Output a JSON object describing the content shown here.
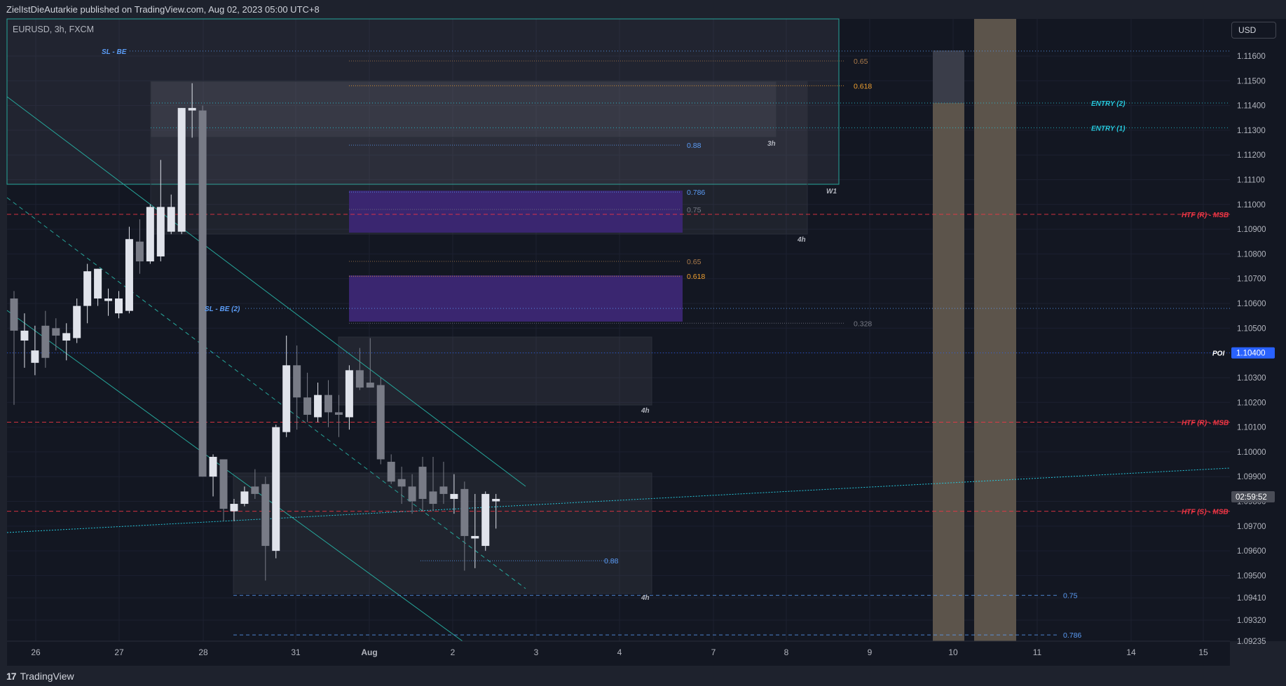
{
  "header": {
    "published_text": "ZielIstDieAutarkie published on TradingView.com, Aug 02, 2023 05:00 UTC+8"
  },
  "legend": {
    "symbol_line": "EURUSD, 3h, FXCM"
  },
  "currency_button": "USD",
  "branding": {
    "logo_text": "TradingView",
    "logo_mark": "17"
  },
  "colors": {
    "background": "#131722",
    "bull_candle": "#e0e3eb",
    "bear_candle": "#787b86",
    "teal": "#26a69a",
    "red": "#f23645",
    "blue": "#2962ff",
    "purple": "#4527a0",
    "tan": "#7d7061"
  },
  "chart_data": {
    "type": "candlestick",
    "symbol": "EURUSD",
    "timeframe": "3h",
    "source": "FXCM",
    "ylim": [
      1.09235,
      1.1175
    ],
    "y_ticks": [
      "1.11600",
      "1.11500",
      "1.11400",
      "1.11300",
      "1.11200",
      "1.11100",
      "1.11000",
      "1.10900",
      "1.10800",
      "1.10700",
      "1.10600",
      "1.10500",
      "1.10400",
      "1.10300",
      "1.10200",
      "1.10100",
      "1.10000",
      "1.09900",
      "1.09800",
      "1.09700",
      "1.09600",
      "1.09500",
      "1.09410",
      "1.09320",
      "1.09235"
    ],
    "x_ticks": [
      "26",
      "27",
      "28",
      "31",
      "Aug",
      "2",
      "3",
      "4",
      "7",
      "8",
      "9",
      "10",
      "11",
      "14",
      "15"
    ],
    "price_labels": {
      "current": "1.10400",
      "countdown": "02:59:52"
    },
    "candles": [
      {
        "o": 1.1062,
        "h": 1.1065,
        "l": 1.1019,
        "c": 1.1049
      },
      {
        "o": 1.1045,
        "h": 1.1056,
        "l": 1.1034,
        "c": 1.1049
      },
      {
        "o": 1.1036,
        "h": 1.1051,
        "l": 1.1031,
        "c": 1.1041
      },
      {
        "o": 1.1051,
        "h": 1.1057,
        "l": 1.1034,
        "c": 1.1038
      },
      {
        "o": 1.105,
        "h": 1.1054,
        "l": 1.1041,
        "c": 1.1047
      },
      {
        "o": 1.1045,
        "h": 1.1052,
        "l": 1.1037,
        "c": 1.1048
      },
      {
        "o": 1.1046,
        "h": 1.1062,
        "l": 1.1044,
        "c": 1.1059
      },
      {
        "o": 1.1059,
        "h": 1.1076,
        "l": 1.1052,
        "c": 1.1073
      },
      {
        "o": 1.1062,
        "h": 1.1074,
        "l": 1.1059,
        "c": 1.1074
      },
      {
        "o": 1.1061,
        "h": 1.1066,
        "l": 1.1055,
        "c": 1.1062
      },
      {
        "o": 1.1056,
        "h": 1.1065,
        "l": 1.1054,
        "c": 1.1062
      },
      {
        "o": 1.1057,
        "h": 1.1091,
        "l": 1.1056,
        "c": 1.1086
      },
      {
        "o": 1.1085,
        "h": 1.1094,
        "l": 1.1072,
        "c": 1.1077
      },
      {
        "o": 1.1077,
        "h": 1.11,
        "l": 1.1076,
        "c": 1.1099
      },
      {
        "o": 1.1079,
        "h": 1.1118,
        "l": 1.1077,
        "c": 1.1099
      },
      {
        "o": 1.1089,
        "h": 1.1104,
        "l": 1.1088,
        "c": 1.1099
      },
      {
        "o": 1.1089,
        "h": 1.1139,
        "l": 1.1088,
        "c": 1.1139
      },
      {
        "o": 1.1138,
        "h": 1.1149,
        "l": 1.1127,
        "c": 1.1139
      },
      {
        "o": 1.1138,
        "h": 1.114,
        "l": 1.099,
        "c": 1.099
      },
      {
        "o": 1.099,
        "h": 1.0999,
        "l": 1.0982,
        "c": 1.0998
      },
      {
        "o": 1.0997,
        "h": 1.0997,
        "l": 1.0972,
        "c": 1.0977
      },
      {
        "o": 1.0976,
        "h": 1.0981,
        "l": 1.0972,
        "c": 1.0979
      },
      {
        "o": 1.0979,
        "h": 1.0986,
        "l": 1.0978,
        "c": 1.0984
      },
      {
        "o": 1.0986,
        "h": 1.0993,
        "l": 1.0981,
        "c": 1.0983
      },
      {
        "o": 1.0987,
        "h": 1.099,
        "l": 1.0948,
        "c": 1.0962
      },
      {
        "o": 1.096,
        "h": 1.1011,
        "l": 1.0957,
        "c": 1.101
      },
      {
        "o": 1.1008,
        "h": 1.1047,
        "l": 1.1006,
        "c": 1.1035
      },
      {
        "o": 1.1035,
        "h": 1.1043,
        "l": 1.1009,
        "c": 1.1022
      },
      {
        "o": 1.1022,
        "h": 1.1032,
        "l": 1.1012,
        "c": 1.1015
      },
      {
        "o": 1.1014,
        "h": 1.1028,
        "l": 1.1012,
        "c": 1.1023
      },
      {
        "o": 1.1023,
        "h": 1.1029,
        "l": 1.101,
        "c": 1.1016
      },
      {
        "o": 1.1016,
        "h": 1.1023,
        "l": 1.1006,
        "c": 1.1015
      },
      {
        "o": 1.1014,
        "h": 1.1035,
        "l": 1.1009,
        "c": 1.1033
      },
      {
        "o": 1.1033,
        "h": 1.1042,
        "l": 1.1025,
        "c": 1.1026
      },
      {
        "o": 1.1028,
        "h": 1.1046,
        "l": 1.1026,
        "c": 1.1026
      },
      {
        "o": 1.1027,
        "h": 1.103,
        "l": 1.0995,
        "c": 1.0997
      },
      {
        "o": 1.0996,
        "h": 1.0999,
        "l": 1.0987,
        "c": 1.0988
      },
      {
        "o": 1.0989,
        "h": 1.0994,
        "l": 1.0979,
        "c": 1.0986
      },
      {
        "o": 1.0986,
        "h": 1.0991,
        "l": 1.0975,
        "c": 1.098
      },
      {
        "o": 1.0994,
        "h": 1.0998,
        "l": 1.0976,
        "c": 1.0981
      },
      {
        "o": 1.0984,
        "h": 1.0998,
        "l": 1.0976,
        "c": 1.0979
      },
      {
        "o": 1.0986,
        "h": 1.0996,
        "l": 1.0979,
        "c": 1.0983
      },
      {
        "o": 1.0981,
        "h": 1.0991,
        "l": 1.0975,
        "c": 1.0983
      },
      {
        "o": 1.0985,
        "h": 1.0988,
        "l": 1.0952,
        "c": 1.0966
      },
      {
        "o": 1.0965,
        "h": 1.0983,
        "l": 1.0953,
        "c": 1.0966
      },
      {
        "o": 1.0962,
        "h": 1.0984,
        "l": 1.096,
        "c": 1.0983
      },
      {
        "o": 1.098,
        "h": 1.0983,
        "l": 1.0969,
        "c": 1.0981
      }
    ],
    "horizontal_levels": [
      {
        "label": "SL - BE",
        "price": 1.1162,
        "color": "#5b9cf6"
      },
      {
        "label": "ENTRY (2)",
        "price": 1.1141,
        "color": "#26c6da"
      },
      {
        "label": "ENTRY (1)",
        "price": 1.1131,
        "color": "#26c6da"
      },
      {
        "label": "HTF (R) - MSB",
        "price": 1.1096,
        "color": "#f23645"
      },
      {
        "label": "SL - BE (2)",
        "price": 1.1058,
        "color": "#5b9cf6"
      },
      {
        "label": "POI",
        "price": 1.104,
        "color": "#2962ff"
      },
      {
        "label": "HTF (R) - MSB",
        "price": 1.1012,
        "color": "#f23645"
      },
      {
        "label": "HTF (S) - MSB",
        "price": 1.0976,
        "color": "#f23645"
      }
    ],
    "fib_levels": [
      {
        "label": "0.65",
        "price": 1.1158
      },
      {
        "label": "0.618",
        "price": 1.1148
      },
      {
        "label": "0.88",
        "price": 1.1124
      },
      {
        "label": "0.786",
        "price": 1.1105
      },
      {
        "label": "0.75",
        "price": 1.1098
      },
      {
        "label": "0.65",
        "price": 1.1077
      },
      {
        "label": "0.618",
        "price": 1.1071
      },
      {
        "label": "0.328",
        "price": 1.1052
      },
      {
        "label": "0.88",
        "price": 1.0956
      },
      {
        "label": "0.75",
        "price": 1.0942
      },
      {
        "label": "0.786",
        "price": 1.0926
      }
    ],
    "zone_labels": [
      "3h",
      "W1",
      "4h",
      "4h",
      "4h"
    ]
  }
}
